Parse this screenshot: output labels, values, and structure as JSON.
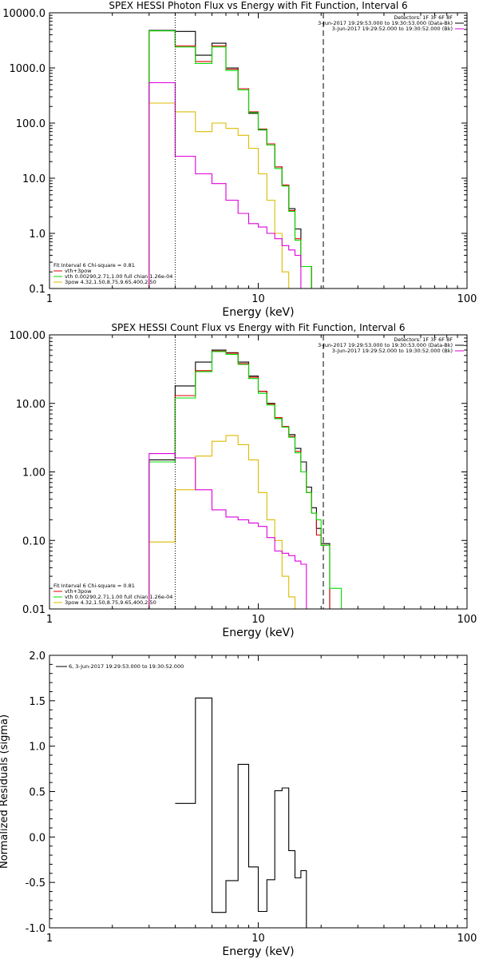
{
  "chart_data": [
    {
      "type": "line",
      "title": "SPEX HESSI Photon Flux vs Energy with Fit Function, Interval 6",
      "xlabel": "Energy (keV)",
      "ylabel": "",
      "xscale": "log",
      "yscale": "log",
      "xlim": [
        1,
        100
      ],
      "ylim": [
        0.1,
        10000
      ],
      "xticks": [
        1,
        10,
        100
      ],
      "xtick_labels": [
        "1",
        "10",
        "100"
      ],
      "yticks": [
        0.1,
        1,
        10,
        100,
        1000,
        10000
      ],
      "ytick_labels": [
        "0.1",
        "1.0",
        "10.0",
        "100.0",
        "1000.0",
        "10000.0"
      ],
      "grid": false,
      "header_lines": [
        {
          "text": "Detectors: 1F 3F 6F 8F"
        },
        {
          "text": "3-Jun-2017 19:29:53.000 to 19:30:53.000 (Data-Bk)",
          "color": "#000000"
        },
        {
          "text": "3-Jun-2017 19:29:52.000 to 19:30:52.000 (Bk)",
          "color": "#dd00dd"
        }
      ],
      "legend_heading": "Fit Interval 6   Chi-square = 0.81",
      "legend": [
        {
          "text": "vth+3pow",
          "color": "#dd0000"
        },
        {
          "text": "vth 0.00290,2.71,1.00  full chian 1.26e-04",
          "color": "#00dd00"
        },
        {
          "text": "3pow 4.32,1.50,8.75,9.65,400,2.50",
          "color": "#ddbb00"
        }
      ],
      "vlines": [
        {
          "x": 4.0,
          "style": "dotted",
          "color": "#000000"
        },
        {
          "x": 20.5,
          "style": "dashed",
          "color": "#000000"
        }
      ],
      "bin_edges": [
        3.0,
        4.0,
        5.0,
        6.0,
        7.0,
        8.0,
        9.0,
        10.0,
        11.0,
        12.0,
        13.0,
        14.0,
        15.0,
        16.0,
        18.0,
        20.0,
        22.0,
        25.0,
        28.0
      ],
      "series": [
        {
          "color": "#000000",
          "values": [
            4800,
            4600,
            1700,
            2800,
            1000,
            420,
            150,
            75,
            40,
            16,
            7.5,
            2.8,
            1.2,
            0.25
          ]
        },
        {
          "color": "#dd0000",
          "values": [
            4700,
            2500,
            1300,
            2500,
            950,
            420,
            160,
            78,
            42,
            16,
            7.5,
            2.6,
            0.8,
            0.25
          ]
        },
        {
          "color": "#00dd00",
          "values": [
            4700,
            2400,
            1200,
            2400,
            900,
            400,
            155,
            76,
            40,
            15,
            7.2,
            2.5,
            0.75,
            0.25,
            0.1
          ]
        },
        {
          "color": "#ddbb00",
          "values": [
            230,
            160,
            70,
            100,
            80,
            60,
            35,
            12,
            4.0,
            1.0,
            0.2
          ]
        },
        {
          "color": "#dd00dd",
          "values": [
            540,
            25,
            12,
            8,
            4,
            2.3,
            1.5,
            1.3,
            1.0,
            0.8,
            0.6,
            0.5,
            0.4
          ]
        }
      ]
    },
    {
      "type": "line",
      "title": "SPEX HESSI Count Flux vs Energy with Fit Function, Interval 6",
      "xlabel": "Energy (keV)",
      "ylabel": "",
      "xscale": "log",
      "yscale": "log",
      "xlim": [
        1,
        100
      ],
      "ylim": [
        0.01,
        100
      ],
      "xticks": [
        1,
        10,
        100
      ],
      "xtick_labels": [
        "1",
        "10",
        "100"
      ],
      "yticks": [
        0.01,
        0.1,
        1,
        10,
        100
      ],
      "ytick_labels": [
        "0.01",
        "0.10",
        "1.00",
        "10.00",
        "100.00"
      ],
      "grid": false,
      "header_lines": [
        {
          "text": "Detectors: 1F 3F 6F 8F"
        },
        {
          "text": "3-Jun-2017 19:29:53.000 to 19:30:53.000 (Data-Bk)",
          "color": "#000000"
        },
        {
          "text": "3-Jun-2017 19:29:52.000 to 19:30:52.000 (Bk)",
          "color": "#dd00dd"
        }
      ],
      "legend_heading": "Fit Interval 6   Chi-square = 0.81",
      "legend": [
        {
          "text": "vth+3pow",
          "color": "#dd0000"
        },
        {
          "text": "vth 0.00290,2.71,1.00  full chian 1.26e-04",
          "color": "#00dd00"
        },
        {
          "text": "3pow 4.32,1.50,8.75,9.65,400,2.50",
          "color": "#ddbb00"
        }
      ],
      "vlines": [
        {
          "x": 4.0,
          "style": "dotted",
          "color": "#000000"
        },
        {
          "x": 20.5,
          "style": "dashed",
          "color": "#000000"
        }
      ],
      "bin_edges": [
        3.0,
        4.0,
        5.0,
        6.0,
        7.0,
        8.0,
        9.0,
        10.0,
        11.0,
        12.0,
        13.0,
        14.0,
        15.0,
        16.0,
        17.0,
        18.0,
        19.0,
        20.0,
        22.0,
        25.0,
        28.0
      ],
      "series": [
        {
          "color": "#000000",
          "values": [
            1.5,
            18,
            40,
            60,
            55,
            40,
            25,
            15,
            10,
            6,
            4.5,
            3.5,
            2.2,
            1.4,
            0.6,
            0.3,
            0.15,
            0.09
          ]
        },
        {
          "color": "#dd0000",
          "values": [
            1.4,
            13,
            30,
            58,
            54,
            38,
            24,
            15,
            9.8,
            6.2,
            4.6,
            3.3,
            2.0,
            1.0,
            0.5,
            0.25,
            0.12,
            0.085
          ]
        },
        {
          "color": "#00dd00",
          "values": [
            1.4,
            12,
            29,
            57,
            52,
            37,
            23,
            14,
            9.5,
            6.0,
            4.5,
            3.2,
            1.9,
            1.0,
            0.5,
            0.25,
            0.2,
            0.085,
            0.02
          ]
        },
        {
          "color": "#ddbb00",
          "values": [
            0.095,
            0.55,
            1.7,
            2.8,
            3.4,
            2.5,
            1.5,
            0.5,
            0.2,
            0.1,
            0.03,
            0.015
          ]
        },
        {
          "color": "#dd00dd",
          "values": [
            1.85,
            1.6,
            0.55,
            0.28,
            0.22,
            0.2,
            0.18,
            0.16,
            0.11,
            0.07,
            0.065,
            0.06,
            0.05,
            0.045
          ]
        }
      ]
    },
    {
      "type": "line",
      "title": "",
      "xlabel": "Energy (keV)",
      "ylabel": "Normalized Residuals (sigma)",
      "xscale": "log",
      "yscale": "linear",
      "xlim": [
        1,
        100
      ],
      "ylim": [
        -1.0,
        2.0
      ],
      "xticks": [
        1,
        10,
        100
      ],
      "xtick_labels": [
        "1",
        "10",
        "100"
      ],
      "yticks": [
        -1.0,
        -0.5,
        0.0,
        0.5,
        1.0,
        1.5,
        2.0
      ],
      "ytick_labels": [
        "-1.0",
        "-0.5",
        "0.0",
        "0.5",
        "1.0",
        "1.5",
        "2.0"
      ],
      "grid": false,
      "legend": [
        {
          "text": "6,  3-Jun-2017 19:29:53.000 to 19:30:52.000",
          "color": "#000000"
        }
      ],
      "bin_edges": [
        4.0,
        5.0,
        6.0,
        7.0,
        8.0,
        9.0,
        10.0,
        11.0,
        12.0,
        13.0,
        14.0,
        15.0,
        16.0,
        17.0,
        18.0,
        19.0,
        20.0
      ],
      "series": [
        {
          "color": "#000000",
          "values": [
            0.37,
            1.53,
            -0.83,
            -0.48,
            0.8,
            -0.33,
            -0.82,
            -0.47,
            0.51,
            0.54,
            -0.15,
            -0.45,
            -0.37
          ]
        }
      ]
    }
  ]
}
